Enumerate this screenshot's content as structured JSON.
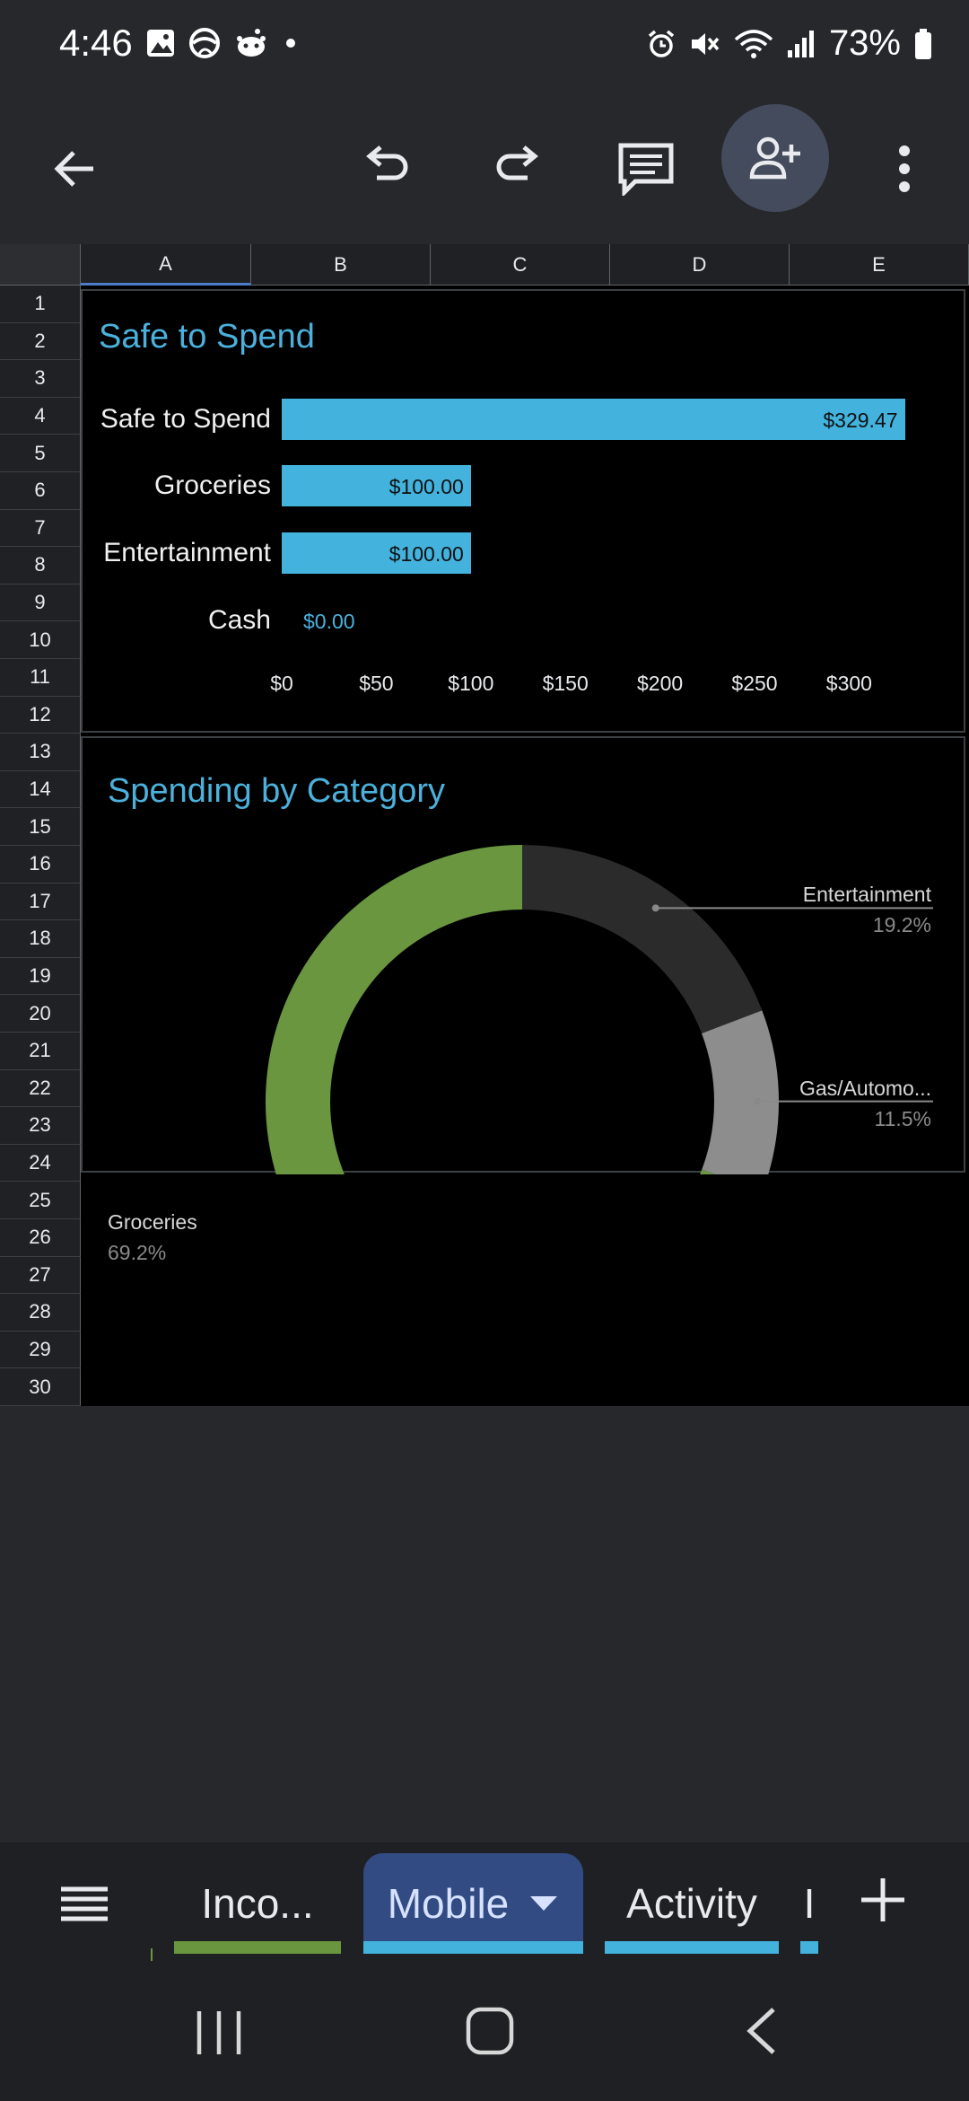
{
  "status_bar": {
    "time": "4:46",
    "battery": "73%",
    "left_icons": [
      "image-icon",
      "vpn-icon",
      "reddit-icon",
      "dot-icon"
    ],
    "right_icons": [
      "alarm-icon",
      "mute-icon",
      "wifi-icon",
      "signal-icon",
      "battery-icon"
    ]
  },
  "toolbar": {
    "icons": [
      "back-arrow-icon",
      "undo-icon",
      "redo-icon",
      "comment-icon",
      "add-person-icon",
      "more-vert-icon"
    ]
  },
  "grid": {
    "columns": [
      "A",
      "B",
      "C",
      "D",
      "E"
    ],
    "rows": [
      "1",
      "2",
      "3",
      "4",
      "5",
      "6",
      "7",
      "8",
      "9",
      "10",
      "11",
      "12",
      "13",
      "14",
      "15",
      "16",
      "17",
      "18",
      "19",
      "20",
      "21",
      "22",
      "23",
      "24",
      "25",
      "26",
      "27",
      "28",
      "29",
      "30"
    ]
  },
  "chart_data": [
    {
      "type": "bar",
      "title": "Safe to Spend",
      "categories": [
        "Safe to Spend",
        "Groceries",
        "Entertainment",
        "Cash"
      ],
      "values": [
        329.47,
        100,
        100,
        0
      ],
      "data_labels": [
        "$329.47",
        "$100.00",
        "$100.00",
        "$0.00"
      ],
      "x_ticks": [
        "$0",
        "$50",
        "$100",
        "$150",
        "$200",
        "$250",
        "$300"
      ],
      "xlim": [
        0,
        300
      ],
      "color": "#43b3dd",
      "orientation": "horizontal"
    },
    {
      "type": "pie",
      "title": "Spending by Category",
      "donut": true,
      "slices": [
        {
          "label": "Entertainment",
          "pct_label": "19.2%",
          "value": 19.2,
          "color": "#2b2b2b"
        },
        {
          "label": "Gas/Automo...",
          "pct_label": "11.5%",
          "value": 11.5,
          "color": "#8d8d8d"
        },
        {
          "label": "Groceries",
          "pct_label": "69.2%",
          "value": 69.2,
          "color": "#6a963f"
        }
      ]
    }
  ],
  "tabs": {
    "items": [
      {
        "label": "Inco...",
        "color": "#6a963f",
        "active": false
      },
      {
        "label": "Mobile",
        "color": "#43b3dd",
        "active": true
      },
      {
        "label": "Activity",
        "color": "#43b3dd",
        "active": false
      },
      {
        "label": "I",
        "color": "#43b3dd",
        "active": false
      }
    ]
  },
  "nav": {
    "icons": [
      "recents-icon",
      "home-icon",
      "back-icon"
    ]
  }
}
